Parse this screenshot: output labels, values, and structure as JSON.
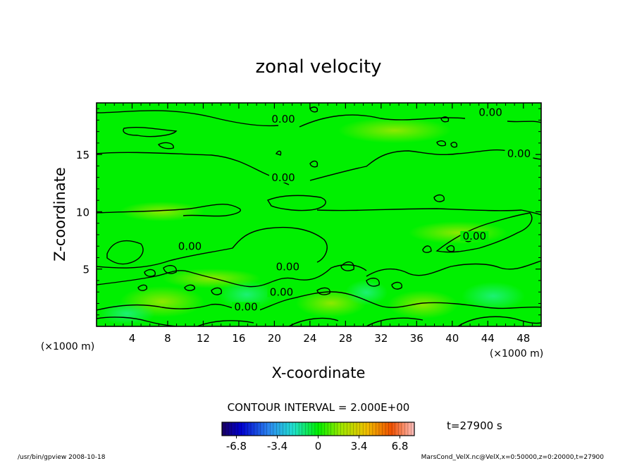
{
  "chart_data": {
    "type": "heatmap",
    "title": "zonal velocity",
    "xlabel": "X-coordinate",
    "ylabel": "Z-coordinate",
    "x_unit": "(×1000 m)",
    "y_unit": "(×1000 m)",
    "xlim": [
      0,
      50
    ],
    "ylim": [
      0,
      19.5
    ],
    "x_ticks": [
      4,
      8,
      12,
      16,
      20,
      24,
      28,
      32,
      36,
      40,
      44,
      48
    ],
    "y_ticks": [
      5,
      10,
      15
    ],
    "contour_interval_text": "CONTOUR INTERVAL = 2.000E+00",
    "contour_label_text": "0.00",
    "contour_labels": [
      {
        "x": 21.0,
        "y": 17.9
      },
      {
        "x": 44.3,
        "y": 18.5
      },
      {
        "x": 47.5,
        "y": 14.9
      },
      {
        "x": 21.0,
        "y": 12.8
      },
      {
        "x": 42.5,
        "y": 7.7
      },
      {
        "x": 10.5,
        "y": 6.8
      },
      {
        "x": 21.5,
        "y": 5.0
      },
      {
        "x": 20.8,
        "y": 2.8
      },
      {
        "x": 16.8,
        "y": 1.5
      }
    ],
    "colorbar": {
      "min": -8,
      "max": 8,
      "tick_labels": [
        "-6.8",
        "-3.4",
        "0",
        "3.4",
        "6.8"
      ],
      "tick_values": [
        -6.8,
        -3.4,
        0,
        3.4,
        6.8
      ]
    },
    "time_label": "t=27900 s"
  },
  "footer": {
    "left": "/usr/bin/gpview   2008-10-18",
    "right": "MarsCond_VelX.nc@VelX,x=0:50000,z=0:20000,t=27900"
  },
  "colors": {
    "field": "#00f000",
    "contour": "#000000",
    "background": "#ffffff"
  }
}
